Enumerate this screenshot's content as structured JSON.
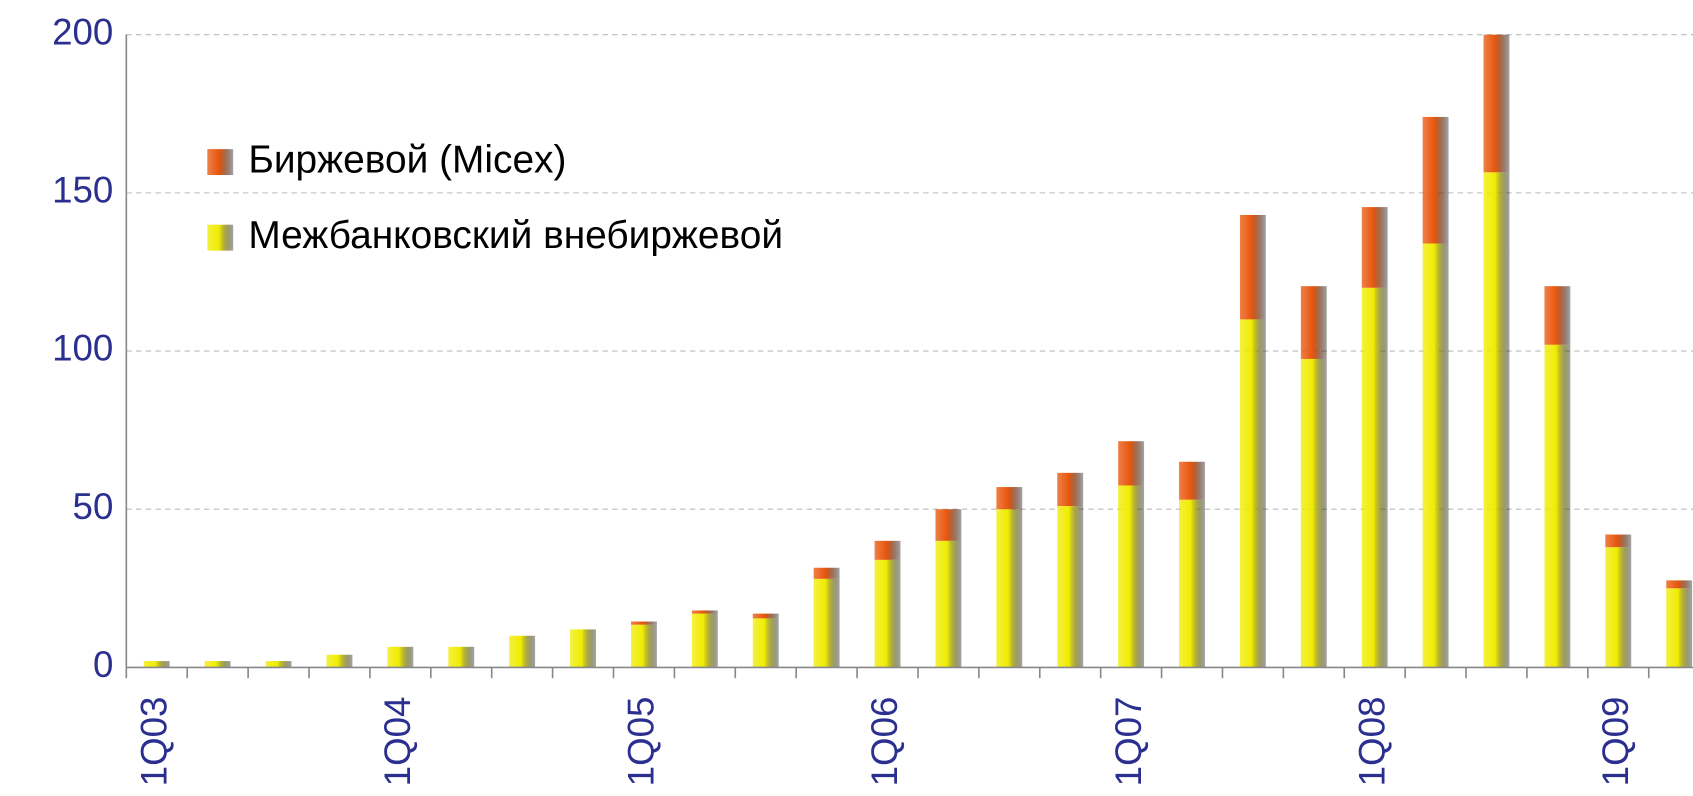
{
  "chart_data": {
    "type": "stacked_bar",
    "categories": [
      "1Q03",
      null,
      null,
      null,
      "1Q04",
      null,
      null,
      null,
      "1Q05",
      null,
      null,
      null,
      "1Q06",
      null,
      null,
      null,
      "1Q07",
      null,
      null,
      null,
      "1Q08",
      null,
      null,
      null,
      "1Q09",
      null
    ],
    "series": [
      {
        "name": "Межбанковский внебиржевой",
        "color": "#f0ec00",
        "values": [
          2,
          2,
          2,
          4,
          6.5,
          6.5,
          10,
          12,
          13.5,
          17,
          15.5,
          28,
          34,
          40,
          50,
          51,
          57.5,
          53,
          110,
          97.5,
          120,
          134,
          156.5,
          102,
          38,
          25
        ]
      },
      {
        "name": "Биржевой (Micex)",
        "color": "#e8560c",
        "values": [
          0,
          0,
          0,
          0,
          0,
          0,
          0,
          0,
          1,
          1,
          1.5,
          3.5,
          6,
          10,
          7,
          10.5,
          14,
          12,
          33,
          23,
          25.5,
          40,
          43.5,
          18.5,
          4,
          2.5
        ]
      }
    ],
    "ylim": [
      0,
      200
    ],
    "yticks": [
      0,
      50,
      100,
      150,
      200
    ],
    "grid": true,
    "legend": "upper left"
  }
}
